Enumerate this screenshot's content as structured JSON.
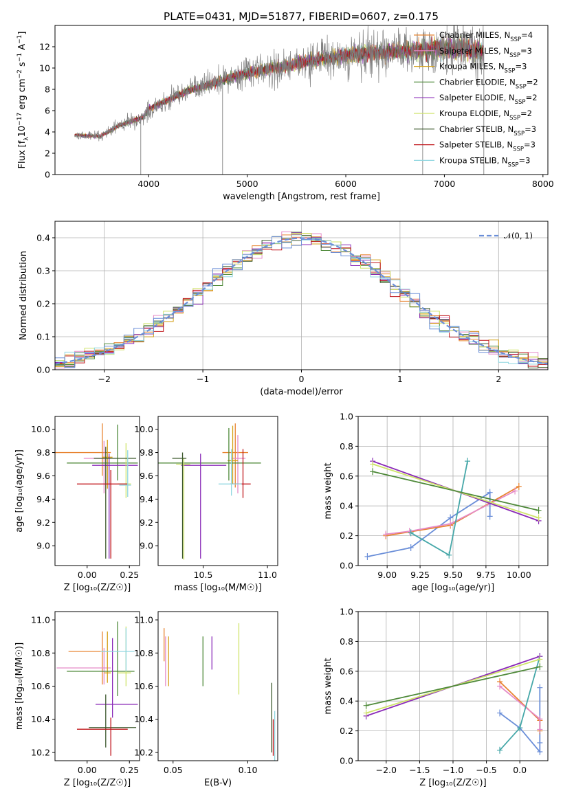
{
  "figure_title": "PLATE=0431, MJD=51877, FIBERID=0607, z=0.175",
  "colors": {
    "data": "#808080",
    "models": [
      "#e8832f",
      "#e58ac7",
      "#d4a017",
      "#4f8a3a",
      "#8a2ab8",
      "#cfe36a",
      "#3d5a2e",
      "#c0141a",
      "#8fd6e0"
    ],
    "normal": "#6a8ed8",
    "weight_lines": [
      "#6a8ed8",
      "#e8832f",
      "#e58ac7",
      "#45a7a8",
      "#8a2ab8",
      "#cfe36a",
      "#4f8a3a"
    ]
  },
  "chart_data": [
    {
      "type": "line",
      "panel": "spectrum",
      "title": "PLATE=0431, MJD=51877, FIBERID=0607, z=0.175",
      "xlabel": "wavelength [Angstrom, rest frame]",
      "ylabel_parts": [
        "Flux [f",
        "λ",
        "10",
        "−17",
        " erg cm",
        "−2",
        " s",
        "−1",
        " A",
        "−1",
        "]"
      ],
      "xlim": [
        3050,
        8050
      ],
      "ylim": [
        0,
        14
      ],
      "xticks": [
        4000,
        5000,
        6000,
        7000,
        8000
      ],
      "yticks": [
        0,
        2,
        4,
        6,
        8,
        10,
        12
      ],
      "grid": false,
      "legend_position": "upper-right",
      "legend": [
        {
          "label": "Chabrier MILES, N",
          "sub": "SSP",
          "suffix": "=4"
        },
        {
          "label": "Salpeter MILES, N",
          "sub": "SSP",
          "suffix": "=3"
        },
        {
          "label": "Kroupa MILES, N",
          "sub": "SSP",
          "suffix": "=3"
        },
        {
          "label": "Chabrier ELODIE, N",
          "sub": "SSP",
          "suffix": "=2"
        },
        {
          "label": "Salpeter ELODIE, N",
          "sub": "SSP",
          "suffix": "=2"
        },
        {
          "label": "Kroupa ELODIE, N",
          "sub": "SSP",
          "suffix": "=2"
        },
        {
          "label": "Chabrier STELIB, N",
          "sub": "SSP",
          "suffix": "=3"
        },
        {
          "label": "Salpeter STELIB, N",
          "sub": "SSP",
          "suffix": "=3"
        },
        {
          "label": "Kroupa STELIB, N",
          "sub": "SSP",
          "suffix": "=3"
        }
      ],
      "continuum": {
        "x": [
          3250,
          3500,
          3550,
          3700,
          3950,
          4000,
          4200,
          4400,
          4600,
          4800,
          5000,
          5200,
          5400,
          5600,
          5800,
          6000,
          6200,
          6400,
          6600,
          6800,
          7000,
          7200,
          7400
        ],
        "y": [
          3.7,
          3.6,
          3.8,
          4.6,
          5.4,
          6.2,
          7.0,
          7.9,
          8.4,
          9.0,
          9.5,
          9.9,
          10.2,
          10.6,
          10.9,
          11.2,
          11.4,
          11.5,
          11.6,
          11.7,
          11.9,
          11.8,
          11.5
        ]
      },
      "noise_growth": [
        3250,
        0.2,
        7400,
        1.4
      ],
      "dips": [
        {
          "x": 3920,
          "y": 0
        },
        {
          "x": 4750,
          "y": 0
        },
        {
          "x": 6780,
          "y": 0
        },
        {
          "x": 7400,
          "y": 0
        }
      ]
    },
    {
      "type": "histogram",
      "panel": "residuals",
      "xlabel": "(data-model)/error",
      "ylabel": "Normed distribution",
      "xlim": [
        -2.5,
        2.5
      ],
      "ylim": [
        0,
        0.45
      ],
      "xticks": [
        -2,
        -1,
        0,
        1,
        2
      ],
      "yticks": [
        0.0,
        0.1,
        0.2,
        0.3,
        0.4
      ],
      "grid": true,
      "legend_position": "upper-right",
      "legend_label": "𝒩(0, 1)",
      "bin_width": 0.1,
      "range": [
        -2.5,
        2.5
      ]
    },
    {
      "type": "errorbar",
      "panel": "age-vs-Z",
      "xlabel": "Z [log₁₀(Z/Z☉)]",
      "ylabel": "age  [log₁₀(age/yr)]",
      "xlim": [
        -0.19,
        0.31
      ],
      "ylim": [
        8.83,
        10.11
      ],
      "xticks": [
        0.0,
        0.25
      ],
      "xticklabels": [
        "0.00",
        "0.25"
      ],
      "yticks": [
        9.0,
        9.2,
        9.4,
        9.6,
        9.8,
        10.0
      ],
      "grid": false,
      "points": [
        {
          "x": 0.09,
          "y": 9.8,
          "xerr": [
            0.28,
            0.05
          ],
          "yerr": [
            0.2,
            0.25
          ]
        },
        {
          "x": 0.1,
          "y": 9.75,
          "xerr": [
            0.12,
            0.04
          ],
          "yerr": [
            0.3,
            0.15
          ]
        },
        {
          "x": 0.12,
          "y": 9.76,
          "xerr": [
            0.03,
            0.03
          ],
          "yerr": [
            0.27,
            0.15
          ]
        },
        {
          "x": 0.18,
          "y": 9.71,
          "xerr": [
            0.3,
            0.12
          ],
          "yerr": [
            0.15,
            0.33
          ]
        },
        {
          "x": 0.13,
          "y": 9.69,
          "xerr": [
            0.1,
            0.17
          ],
          "yerr": [
            0.8,
            0.1
          ]
        },
        {
          "x": 0.23,
          "y": 9.53,
          "xerr": [
            0.05,
            0.03
          ],
          "yerr": [
            0.12,
            0.35
          ]
        },
        {
          "x": 0.11,
          "y": 9.75,
          "xerr": [
            0.07,
            0.18
          ],
          "yerr": [
            0.86,
            0.1
          ]
        },
        {
          "x": 0.14,
          "y": 9.53,
          "xerr": [
            0.2,
            0.1
          ],
          "yerr": [
            0.64,
            0.12
          ]
        },
        {
          "x": 0.24,
          "y": 9.52,
          "xerr": [
            0.05,
            0.02
          ],
          "yerr": [
            0.1,
            0.3
          ]
        }
      ]
    },
    {
      "type": "errorbar",
      "panel": "age-vs-mass",
      "xlabel": "mass [log₁₀(M/M☉)]",
      "ylabel": "",
      "xlim": [
        10.15,
        11.08
      ],
      "ylim": [
        8.83,
        10.11
      ],
      "xticks": [
        10.5,
        11.0
      ],
      "xticklabels": [
        "10.5",
        "11.0"
      ],
      "yticks": [
        9.0,
        9.2,
        9.4,
        9.6,
        9.8,
        10.0
      ],
      "grid": false,
      "points": [
        {
          "x": 10.75,
          "y": 9.8,
          "xerr": [
            0.1,
            0.1
          ],
          "yerr": [
            0.3,
            0.25
          ]
        },
        {
          "x": 10.77,
          "y": 9.75,
          "xerr": [
            0.05,
            0.06
          ],
          "yerr": [
            0.3,
            0.2
          ]
        },
        {
          "x": 10.73,
          "y": 9.73,
          "xerr": [
            0.04,
            0.04
          ],
          "yerr": [
            0.2,
            0.3
          ]
        },
        {
          "x": 10.7,
          "y": 9.71,
          "xerr": [
            0.55,
            0.25
          ],
          "yerr": [
            0.15,
            0.3
          ]
        },
        {
          "x": 10.48,
          "y": 9.69,
          "xerr": [
            0.15,
            0.2
          ],
          "yerr": [
            0.8,
            0.1
          ]
        },
        {
          "x": 10.35,
          "y": 9.7,
          "xerr": [
            0.06,
            0.05
          ],
          "yerr": [
            0.82,
            0.05
          ]
        },
        {
          "x": 10.34,
          "y": 9.75,
          "xerr": [
            0.08,
            0.03
          ],
          "yerr": [
            0.86,
            0.05
          ]
        },
        {
          "x": 10.81,
          "y": 9.53,
          "xerr": [
            0.1,
            0.06
          ],
          "yerr": [
            0.12,
            0.3
          ]
        },
        {
          "x": 10.72,
          "y": 9.53,
          "xerr": [
            0.1,
            0.08
          ],
          "yerr": [
            0.1,
            0.3
          ]
        }
      ]
    },
    {
      "type": "line",
      "panel": "weight-vs-age",
      "xlabel": "age  [log₁₀(age/yr)]",
      "ylabel": "mass weight",
      "xlim": [
        8.78,
        10.22
      ],
      "ylim": [
        0.0,
        1.0
      ],
      "xticks": [
        9.0,
        9.25,
        9.5,
        9.75,
        10.0
      ],
      "xticklabels": [
        "9.00",
        "9.25",
        "9.50",
        "9.75",
        "10.00"
      ],
      "yticks": [
        0.0,
        0.2,
        0.4,
        0.6,
        0.8,
        1.0
      ],
      "grid": true,
      "series": [
        {
          "x": [
            8.85,
            9.18,
            9.48,
            9.78,
            9.78
          ],
          "y": [
            0.06,
            0.12,
            0.32,
            0.49,
            0.33
          ]
        },
        {
          "x": [
            8.99,
            9.48,
            10.0
          ],
          "y": [
            0.2,
            0.27,
            0.53
          ]
        },
        {
          "x": [
            8.99,
            9.17,
            9.48,
            9.97
          ],
          "y": [
            0.21,
            0.23,
            0.28,
            0.5
          ]
        },
        {
          "x": [
            9.18,
            9.47,
            9.61
          ],
          "y": [
            0.22,
            0.07,
            0.7
          ]
        },
        {
          "x": [
            8.89,
            10.15
          ],
          "y": [
            0.7,
            0.3
          ]
        },
        {
          "x": [
            8.89,
            10.15
          ],
          "y": [
            0.68,
            0.32
          ]
        },
        {
          "x": [
            8.89,
            10.15
          ],
          "y": [
            0.63,
            0.37
          ]
        }
      ]
    },
    {
      "type": "errorbar",
      "panel": "mass-vs-Z",
      "xlabel": "Z [log₁₀(Z/Z☉)]",
      "ylabel": "mass [log₁₀(M/M☉)]",
      "xlim": [
        -0.19,
        0.31
      ],
      "ylim": [
        10.15,
        11.05
      ],
      "xticks": [
        0.0,
        0.25
      ],
      "xticklabels": [
        "0.00",
        "0.25"
      ],
      "yticks": [
        10.2,
        10.4,
        10.6,
        10.8,
        11.0
      ],
      "grid": false,
      "points": [
        {
          "x": 0.09,
          "y": 10.81,
          "xerr": [
            0.2,
            0.05
          ],
          "yerr": [
            0.2,
            0.12
          ]
        },
        {
          "x": 0.1,
          "y": 10.71,
          "xerr": [
            0.28,
            0.04
          ],
          "yerr": [
            0.1,
            0.12
          ]
        },
        {
          "x": 0.12,
          "y": 10.68,
          "xerr": [
            0.02,
            0.02
          ],
          "yerr": [
            0.06,
            0.25
          ]
        },
        {
          "x": 0.18,
          "y": 10.69,
          "xerr": [
            0.3,
            0.1
          ],
          "yerr": [
            0.15,
            0.3
          ]
        },
        {
          "x": 0.15,
          "y": 10.49,
          "xerr": [
            0.1,
            0.15
          ],
          "yerr": [
            0.08,
            0.4
          ]
        },
        {
          "x": 0.23,
          "y": 10.68,
          "xerr": [
            0.05,
            0.03
          ],
          "yerr": [
            0.08,
            0.28
          ]
        },
        {
          "x": 0.11,
          "y": 10.35,
          "xerr": [
            0.1,
            0.18
          ],
          "yerr": [
            0.12,
            0.2
          ]
        },
        {
          "x": 0.14,
          "y": 10.34,
          "xerr": [
            0.2,
            0.1
          ],
          "yerr": [
            0.16,
            0.07
          ]
        },
        {
          "x": 0.23,
          "y": 10.81,
          "xerr": [
            0.15,
            0.05
          ],
          "yerr": [
            0.12,
            0.14
          ]
        }
      ]
    },
    {
      "type": "errorbar",
      "panel": "mass-vs-EBV",
      "xlabel": "E(B-V)",
      "ylabel": "",
      "xlim": [
        0.04,
        0.12
      ],
      "ylim": [
        10.15,
        11.05
      ],
      "xticks": [
        0.05,
        0.1
      ],
      "xticklabels": [
        "0.05",
        "0.10"
      ],
      "yticks": [
        10.2,
        10.4,
        10.6,
        10.8,
        11.0
      ],
      "grid": false,
      "points": [
        {
          "x": 0.044,
          "y": 10.85,
          "yerr": [
            0.1,
            0.1
          ]
        },
        {
          "x": 0.045,
          "y": 10.75,
          "yerr": [
            0.15,
            0.15
          ]
        },
        {
          "x": 0.047,
          "y": 10.8,
          "yerr": [
            0.2,
            0.1
          ]
        },
        {
          "x": 0.07,
          "y": 10.8,
          "yerr": [
            0.2,
            0.1
          ]
        },
        {
          "x": 0.076,
          "y": 10.8,
          "yerr": [
            0.1,
            0.1
          ]
        },
        {
          "x": 0.094,
          "y": 10.8,
          "yerr": [
            0.25,
            0.18
          ]
        },
        {
          "x": 0.116,
          "y": 10.45,
          "yerr": [
            0.25,
            0.17
          ]
        },
        {
          "x": 0.117,
          "y": 10.3,
          "yerr": [
            0.12,
            0.1
          ]
        },
        {
          "x": 0.118,
          "y": 10.35,
          "yerr": [
            0.2,
            0.1
          ]
        }
      ]
    },
    {
      "type": "line",
      "panel": "weight-vs-Z",
      "xlabel": "Z [log₁₀(Z/Z☉)]",
      "ylabel": "mass weight",
      "xlim": [
        -2.42,
        0.42
      ],
      "ylim": [
        0.0,
        1.0
      ],
      "xticks": [
        -2.0,
        -1.5,
        -1.0,
        -0.5,
        0.0
      ],
      "xticklabels": [
        "−2.0",
        "−1.5",
        "−1.0",
        "−0.5",
        "0.0"
      ],
      "yticks": [
        0.0,
        0.2,
        0.4,
        0.6,
        0.8,
        1.0
      ],
      "grid": true,
      "series": [
        {
          "x": [
            -0.3,
            0.0,
            0.3,
            0.3,
            0.3
          ],
          "y": [
            0.32,
            0.22,
            0.06,
            0.12,
            0.49
          ]
        },
        {
          "x": [
            -0.3,
            0.3,
            0.3
          ],
          "y": [
            0.53,
            0.27,
            0.2
          ]
        },
        {
          "x": [
            -0.3,
            0.3,
            0.3
          ],
          "y": [
            0.5,
            0.28,
            0.21
          ]
        },
        {
          "x": [
            -0.3,
            0.0,
            0.3
          ],
          "y": [
            0.07,
            0.22,
            0.7
          ]
        },
        {
          "x": [
            -2.3,
            0.3
          ],
          "y": [
            0.3,
            0.7
          ]
        },
        {
          "x": [
            -2.3,
            0.3
          ],
          "y": [
            0.32,
            0.68
          ]
        },
        {
          "x": [
            -2.3,
            0.3
          ],
          "y": [
            0.37,
            0.63
          ]
        }
      ]
    }
  ]
}
